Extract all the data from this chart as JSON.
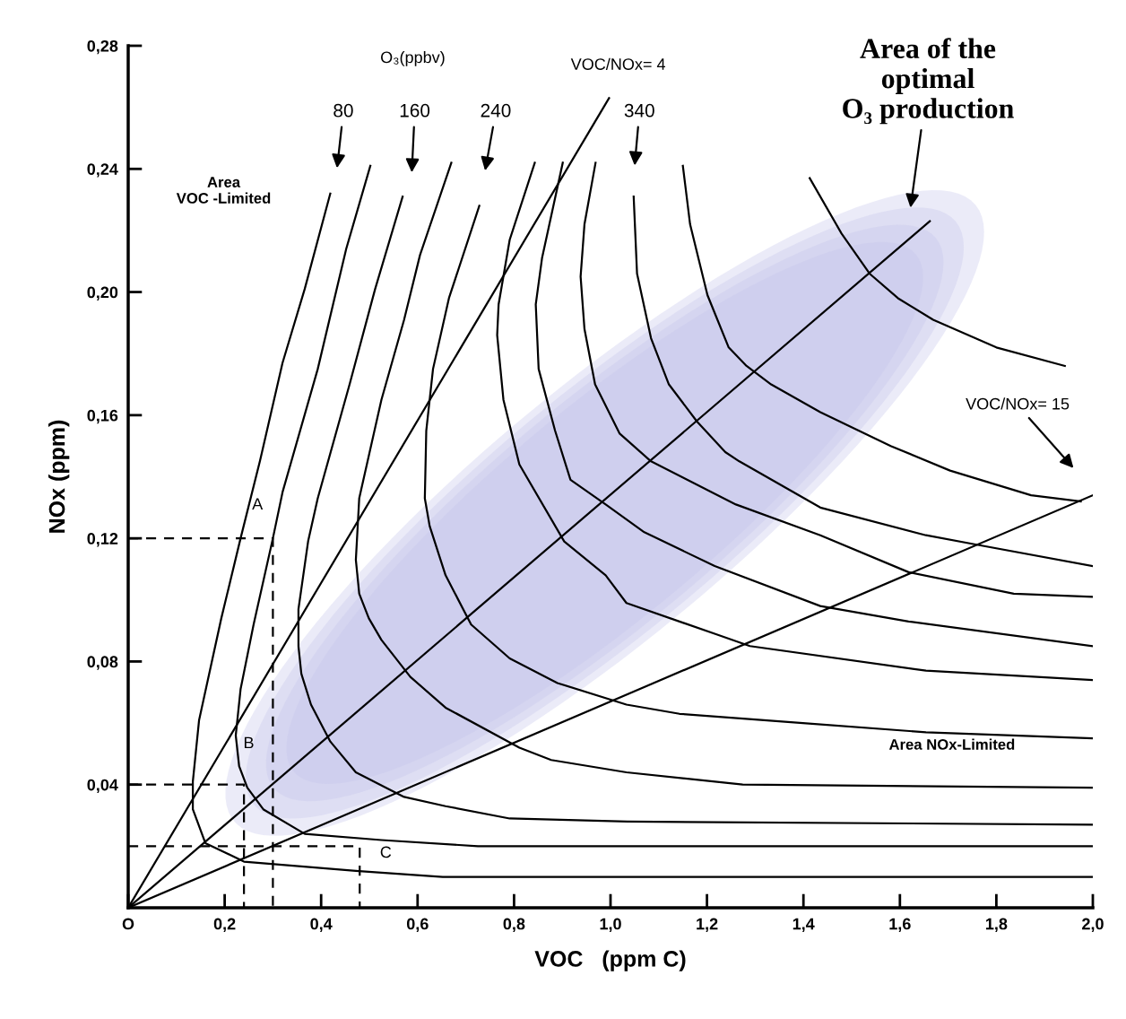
{
  "chart_data": {
    "type": "line",
    "xlabel": "VOC   (ppm C)",
    "ylabel": "NOx (ppm)",
    "xlim": [
      0,
      2.0
    ],
    "ylim": [
      0,
      0.28
    ],
    "xticks": [
      {
        "value": 0,
        "label": "O"
      },
      {
        "value": 0.2,
        "label": "0,2"
      },
      {
        "value": 0.4,
        "label": "0,4"
      },
      {
        "value": 0.6,
        "label": "0,6"
      },
      {
        "value": 0.8,
        "label": "0,8"
      },
      {
        "value": 1.0,
        "label": "1,0"
      },
      {
        "value": 1.2,
        "label": "1,2"
      },
      {
        "value": 1.4,
        "label": "1,4"
      },
      {
        "value": 1.6,
        "label": "1,6"
      },
      {
        "value": 1.8,
        "label": "1,8"
      },
      {
        "value": 2.0,
        "label": "2,0"
      }
    ],
    "yticks": [
      {
        "value": 0.04,
        "label": "0,04"
      },
      {
        "value": 0.08,
        "label": "0,08"
      },
      {
        "value": 0.12,
        "label": "0,12"
      },
      {
        "value": 0.16,
        "label": "0,16"
      },
      {
        "value": 0.2,
        "label": "0,20"
      },
      {
        "value": 0.24,
        "label": "0,24"
      },
      {
        "value": 0.28,
        "label": "0,28"
      }
    ],
    "marker": "none",
    "line_style": "solid",
    "series": [
      {
        "color": "#000000",
        "x": [
          0.419,
          0.366,
          0.32,
          0.273,
          0.233,
          0.193,
          0.147,
          0.134,
          0.134,
          0.16,
          0.24,
          0.472,
          0.652,
          2.0
        ],
        "values": [
          0.232,
          0.201,
          0.177,
          0.145,
          0.12,
          0.094,
          0.061,
          0.041,
          0.032,
          0.021,
          0.015,
          0.012,
          0.01,
          0.01
        ]
      },
      {
        "color": "#000000",
        "x": [
          0.502,
          0.452,
          0.393,
          0.32,
          0.3,
          0.26,
          0.233,
          0.223,
          0.23,
          0.247,
          0.28,
          0.366,
          0.525,
          0.725,
          2.0
        ],
        "values": [
          0.241,
          0.214,
          0.175,
          0.135,
          0.12,
          0.092,
          0.071,
          0.056,
          0.046,
          0.039,
          0.032,
          0.024,
          0.022,
          0.02,
          0.02
        ]
      },
      {
        "color": "#000000",
        "x": [
          0.569,
          0.512,
          0.459,
          0.393,
          0.373,
          0.353,
          0.353,
          0.359,
          0.379,
          0.419,
          0.472,
          0.572,
          0.658,
          0.791,
          1.035,
          2.0
        ],
        "values": [
          0.231,
          0.201,
          0.17,
          0.133,
          0.119,
          0.097,
          0.085,
          0.076,
          0.066,
          0.054,
          0.044,
          0.036,
          0.033,
          0.029,
          0.028,
          0.027
        ]
      },
      {
        "color": "#000000",
        "x": [
          0.67,
          0.605,
          0.572,
          0.525,
          0.479,
          0.472,
          0.479,
          0.499,
          0.525,
          0.585,
          0.658,
          0.811,
          0.877,
          1.033,
          1.274,
          2.0
        ],
        "values": [
          0.242,
          0.212,
          0.191,
          0.165,
          0.133,
          0.113,
          0.102,
          0.094,
          0.087,
          0.075,
          0.065,
          0.052,
          0.048,
          0.044,
          0.04,
          0.039
        ]
      },
      {
        "color": "#000000",
        "x": [
          0.728,
          0.665,
          0.632,
          0.618,
          0.615,
          0.625,
          0.658,
          0.711,
          0.791,
          0.89,
          1.033,
          1.143,
          1.399,
          1.654,
          2.0
        ],
        "values": [
          0.228,
          0.198,
          0.175,
          0.155,
          0.133,
          0.124,
          0.108,
          0.092,
          0.081,
          0.073,
          0.066,
          0.063,
          0.06,
          0.057,
          0.055
        ]
      },
      {
        "color": "#000000",
        "x": [
          0.843,
          0.791,
          0.768,
          0.765,
          0.778,
          0.811,
          0.904,
          0.99,
          1.033,
          1.216,
          1.289,
          1.654,
          2.0
        ],
        "values": [
          0.242,
          0.217,
          0.196,
          0.186,
          0.165,
          0.144,
          0.119,
          0.108,
          0.099,
          0.089,
          0.085,
          0.077,
          0.074
        ]
      },
      {
        "color": "#000000",
        "x": [
          0.901,
          0.858,
          0.845,
          0.851,
          0.885,
          0.917,
          0.99,
          1.07,
          1.216,
          1.435,
          1.618,
          2.0
        ],
        "values": [
          0.242,
          0.211,
          0.196,
          0.175,
          0.155,
          0.139,
          0.131,
          0.122,
          0.111,
          0.098,
          0.093,
          0.085
        ]
      },
      {
        "color": "#000000",
        "x": [
          0.969,
          0.946,
          0.938,
          0.946,
          0.968,
          1.019,
          1.084,
          1.26,
          1.435,
          1.618,
          1.836,
          2.0
        ],
        "values": [
          0.242,
          0.222,
          0.205,
          0.188,
          0.17,
          0.154,
          0.145,
          0.131,
          0.121,
          0.109,
          0.102,
          0.101
        ]
      },
      {
        "color": "#000000",
        "x": [
          1.048,
          1.055,
          1.084,
          1.121,
          1.179,
          1.238,
          1.267,
          1.435,
          1.654,
          1.757,
          2.0
        ],
        "values": [
          0.231,
          0.206,
          0.185,
          0.17,
          0.158,
          0.148,
          0.145,
          0.13,
          0.121,
          0.118,
          0.111
        ]
      },
      {
        "color": "#000000",
        "x": [
          1.15,
          1.165,
          1.201,
          1.245,
          1.282,
          1.333,
          1.435,
          1.581,
          1.704,
          1.872,
          1.975
        ],
        "values": [
          0.241,
          0.222,
          0.199,
          0.182,
          0.176,
          0.17,
          0.161,
          0.15,
          0.142,
          0.134,
          0.132
        ]
      },
      {
        "color": "#000000",
        "x": [
          1.413,
          1.479,
          1.537,
          1.596,
          1.669,
          1.8,
          1.942
        ],
        "values": [
          0.237,
          0.219,
          0.206,
          0.198,
          0.191,
          0.182,
          0.176
        ]
      },
      {
        "color": "#000000",
        "x": [
          0,
          0.997
        ],
        "values": [
          0,
          0.263
        ]
      },
      {
        "color": "#000000",
        "x": [
          0,
          1.662
        ],
        "values": [
          0,
          0.223
        ]
      },
      {
        "color": "#000000",
        "x": [
          0,
          2.0
        ],
        "values": [
          0,
          0.134
        ]
      },
      {
        "color": "#000000",
        "line_style": "dashed",
        "x": [
          0,
          0.3,
          0.3
        ],
        "values": [
          0.12,
          0.12,
          0
        ]
      },
      {
        "color": "#000000",
        "line_style": "dashed",
        "x": [
          0,
          0.24,
          0.24
        ],
        "values": [
          0.04,
          0.04,
          0
        ]
      },
      {
        "color": "#000000",
        "line_style": "dashed",
        "x": [
          0,
          0.48,
          0.48
        ],
        "values": [
          0.02,
          0.02,
          0
        ]
      }
    ],
    "annotations": [
      "O₃(ppbv)",
      "VOC/NOx= 4",
      "80",
      "160",
      "240",
      "340",
      "Area of the\noptimal\nO₃ production",
      "VOC/NOx= 15",
      "Area\nVOC -Limited",
      "Area NOx-Limited",
      "A",
      "B",
      "C"
    ]
  }
}
